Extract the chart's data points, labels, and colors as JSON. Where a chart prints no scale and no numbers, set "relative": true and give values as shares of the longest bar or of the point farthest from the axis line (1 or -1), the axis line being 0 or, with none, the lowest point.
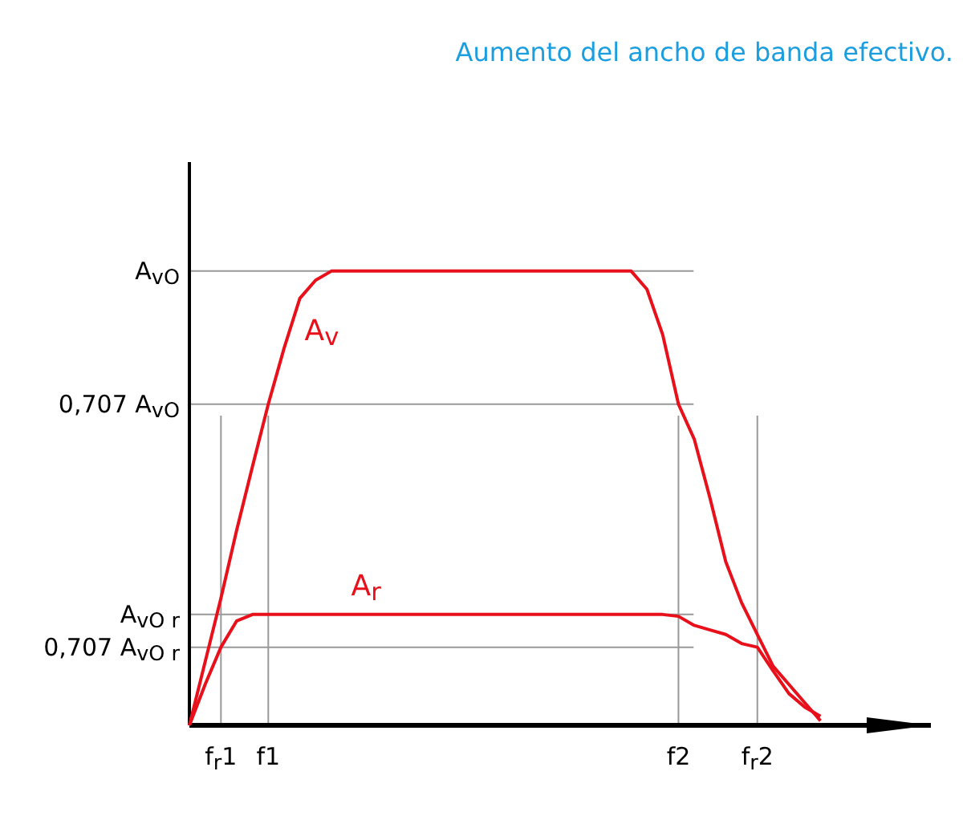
{
  "chart_data": {
    "type": "line",
    "title": "Aumento del ancho de banda efectivo.",
    "relative": true,
    "categories": [
      null,
      null,
      "f$_{r}$1",
      null,
      null,
      "f1",
      null,
      null,
      null,
      null,
      null,
      null,
      null,
      null,
      null,
      null,
      null,
      null,
      null,
      null,
      null,
      null,
      null,
      null,
      null,
      null,
      null,
      null,
      null,
      null,
      null,
      "f2",
      null,
      null,
      null,
      null,
      "f$_{r}$2",
      null,
      null,
      null,
      null,
      null,
      null,
      null,
      null,
      null,
      null,
      null
    ],
    "ref_lines": [
      {
        "axis": "y",
        "value": 1,
        "label": "A$_{vO}$",
        "color": "#999999"
      },
      {
        "axis": "y",
        "value": 0.707,
        "label": "0,707 A$_{vO}$",
        "color": "#999999"
      },
      {
        "axis": "y",
        "value": 0.244,
        "label": "A$_{vO r}$",
        "color": "#999999"
      },
      {
        "axis": "y",
        "value": 0.172,
        "label": "0,707 A$_{vO r}$",
        "color": "#999999"
      },
      {
        "axis": "x",
        "value": "f$_{r}$1",
        "color": "#999999"
      },
      {
        "axis": "x",
        "value": "f1",
        "color": "#999999"
      },
      {
        "axis": "x",
        "value": "f2",
        "color": "#999999"
      },
      {
        "axis": "x",
        "value": "f$_{r}$2",
        "color": "#999999"
      }
    ],
    "series": [
      {
        "name": "A$_{v}$",
        "color": "#e8101a",
        "values": [
          0,
          0.14,
          0.28,
          0.43,
          0.57,
          0.707,
          0.83,
          0.94,
          0.98,
          1,
          1,
          1,
          1,
          1,
          1,
          1,
          1,
          1,
          1,
          1,
          1,
          1,
          1,
          1,
          1,
          1,
          1,
          1,
          1,
          0.96,
          0.86,
          0.707,
          0.63,
          0.5,
          0.36,
          0.27,
          0.2,
          0.13,
          0.09,
          0.05,
          0.01,
          null,
          null,
          null,
          null,
          null,
          null,
          null
        ]
      },
      {
        "name": "A$_{r}$",
        "color": "#e8101a",
        "values": [
          0,
          0.09,
          0.172,
          0.23,
          0.244,
          0.244,
          0.244,
          0.244,
          0.244,
          0.244,
          0.244,
          0.244,
          0.244,
          0.244,
          0.244,
          0.244,
          0.244,
          0.244,
          0.244,
          0.244,
          0.244,
          0.244,
          0.244,
          0.244,
          0.244,
          0.244,
          0.244,
          0.244,
          0.244,
          0.244,
          0.244,
          0.24,
          0.22,
          0.21,
          0.2,
          0.18,
          0.172,
          0.12,
          0.07,
          0.04,
          0.02,
          null,
          null,
          null,
          null,
          null,
          null,
          null
        ]
      }
    ]
  }
}
